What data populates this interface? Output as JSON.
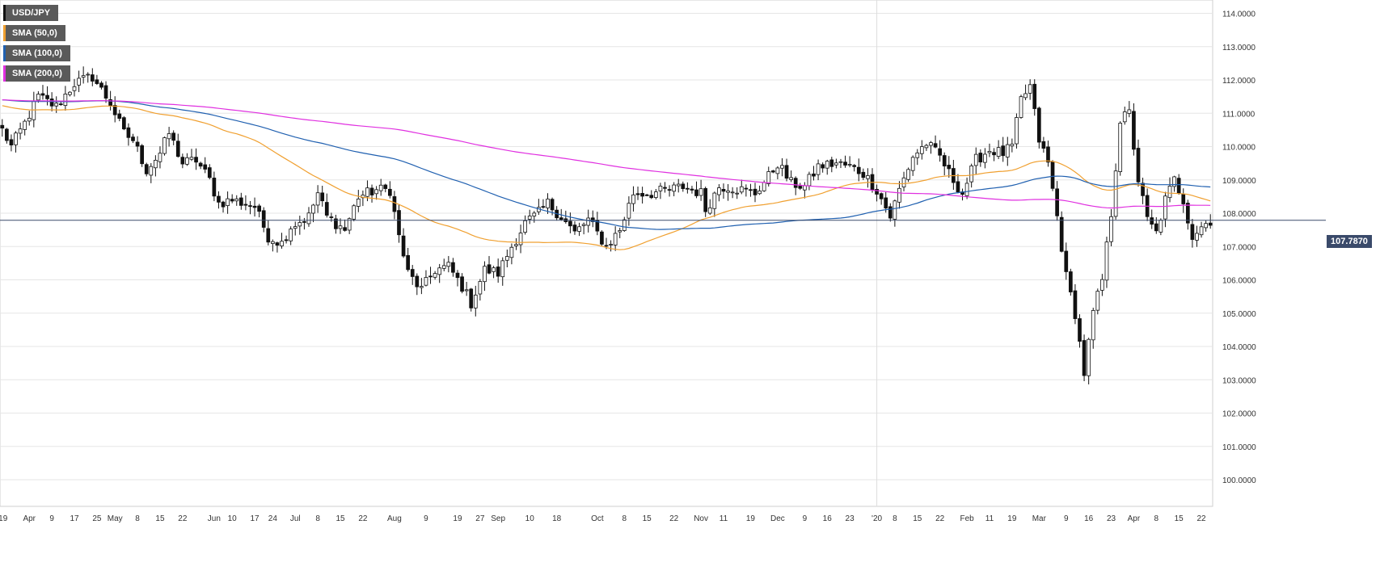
{
  "chart_data": {
    "type": "candlestick",
    "symbol": "USD/JPY",
    "legend": [
      {
        "name": "USD/JPY",
        "color": "#111111"
      },
      {
        "name": "SMA (50,0)",
        "color": "#f0a030"
      },
      {
        "name": "SMA (100,0)",
        "color": "#2060b0"
      },
      {
        "name": "SMA (200,0)",
        "color": "#e030e0"
      }
    ],
    "last_price": "107.7870",
    "ylim": [
      99.2,
      114.4
    ],
    "y_ticks": [
      "114.0000",
      "113.0000",
      "112.0000",
      "111.0000",
      "110.0000",
      "109.0000",
      "108.0000",
      "107.0000",
      "106.0000",
      "105.0000",
      "104.0000",
      "103.0000",
      "102.0000",
      "101.0000",
      "100.0000"
    ],
    "x_ticks": [
      "'19",
      "Apr",
      "9",
      "17",
      "25",
      "May",
      "8",
      "15",
      "22",
      "Jun",
      "10",
      "17",
      "24",
      "Jul",
      "8",
      "15",
      "22",
      "Aug",
      "9",
      "19",
      "27",
      "Sep",
      "10",
      "18",
      "Oct",
      "8",
      "15",
      "22",
      "Nov",
      "11",
      "19",
      "Dec",
      "9",
      "16",
      "23",
      "'20",
      "8",
      "15",
      "22",
      "Feb",
      "11",
      "19",
      "Mar",
      "9",
      "16",
      "23",
      "Apr",
      "8",
      "15",
      "22"
    ],
    "x_tick_index": [
      0,
      6,
      11,
      16,
      21,
      25,
      30,
      35,
      40,
      47,
      51,
      56,
      60,
      65,
      70,
      75,
      80,
      87,
      94,
      101,
      106,
      110,
      117,
      123,
      132,
      138,
      143,
      149,
      155,
      160,
      166,
      172,
      178,
      183,
      188,
      194,
      198,
      203,
      208,
      214,
      219,
      224,
      230,
      236,
      241,
      246,
      251,
      256,
      261,
      266
    ],
    "gridlines": true,
    "anchors": [
      [
        0,
        110.5
      ],
      [
        2,
        110.0
      ],
      [
        5,
        110.7
      ],
      [
        8,
        111.5
      ],
      [
        12,
        111.2
      ],
      [
        16,
        111.9
      ],
      [
        20,
        112.1
      ],
      [
        22,
        111.7
      ],
      [
        24,
        111.3
      ],
      [
        27,
        110.4
      ],
      [
        29,
        110.2
      ],
      [
        32,
        109.3
      ],
      [
        35,
        109.8
      ],
      [
        37,
        110.4
      ],
      [
        40,
        109.5
      ],
      [
        43,
        109.6
      ],
      [
        46,
        109.0
      ],
      [
        48,
        108.3
      ],
      [
        51,
        108.4
      ],
      [
        56,
        108.2
      ],
      [
        59,
        107.3
      ],
      [
        62,
        107.1
      ],
      [
        64,
        107.6
      ],
      [
        68,
        107.9
      ],
      [
        70,
        108.6
      ],
      [
        72,
        107.9
      ],
      [
        76,
        107.5
      ],
      [
        79,
        108.5
      ],
      [
        83,
        108.7
      ],
      [
        86,
        108.7
      ],
      [
        88,
        107.3
      ],
      [
        90,
        106.2
      ],
      [
        93,
        105.7
      ],
      [
        96,
        106.3
      ],
      [
        99,
        106.4
      ],
      [
        102,
        105.8
      ],
      [
        104,
        105.3
      ],
      [
        107,
        106.3
      ],
      [
        110,
        106.2
      ],
      [
        113,
        107.0
      ],
      [
        116,
        107.7
      ],
      [
        119,
        108.0
      ],
      [
        121,
        108.3
      ],
      [
        124,
        107.9
      ],
      [
        127,
        107.4
      ],
      [
        130,
        107.8
      ],
      [
        132,
        107.4
      ],
      [
        134,
        107.0
      ],
      [
        137,
        107.5
      ],
      [
        140,
        108.6
      ],
      [
        144,
        108.6
      ],
      [
        148,
        108.7
      ],
      [
        151,
        108.8
      ],
      [
        155,
        108.6
      ],
      [
        156,
        108.1
      ],
      [
        159,
        108.8
      ],
      [
        161,
        108.8
      ],
      [
        164,
        108.7
      ],
      [
        167,
        108.6
      ],
      [
        170,
        109.1
      ],
      [
        172,
        109.5
      ],
      [
        175,
        108.9
      ],
      [
        178,
        108.8
      ],
      [
        181,
        109.4
      ],
      [
        185,
        109.5
      ],
      [
        188,
        109.4
      ],
      [
        191,
        109.2
      ],
      [
        194,
        108.7
      ],
      [
        197,
        107.9
      ],
      [
        199,
        108.7
      ],
      [
        202,
        109.7
      ],
      [
        205,
        110.1
      ],
      [
        208,
        109.7
      ],
      [
        210,
        109.2
      ],
      [
        213,
        108.6
      ],
      [
        216,
        109.6
      ],
      [
        219,
        109.9
      ],
      [
        222,
        109.8
      ],
      [
        224,
        110.0
      ],
      [
        226,
        111.4
      ],
      [
        228,
        111.8
      ],
      [
        230,
        110.2
      ],
      [
        232,
        109.5
      ],
      [
        234,
        107.9
      ],
      [
        236,
        106.1
      ],
      [
        238,
        105.0
      ],
      [
        240,
        103.2
      ],
      [
        242,
        105.0
      ],
      [
        244,
        106.0
      ],
      [
        246,
        108.0
      ],
      [
        248,
        110.8
      ],
      [
        250,
        111.0
      ],
      [
        252,
        109.0
      ],
      [
        254,
        107.8
      ],
      [
        256,
        107.4
      ],
      [
        258,
        108.4
      ],
      [
        260,
        109.0
      ],
      [
        262,
        108.4
      ],
      [
        264,
        107.3
      ],
      [
        266,
        107.6
      ],
      [
        268,
        107.79
      ]
    ]
  }
}
